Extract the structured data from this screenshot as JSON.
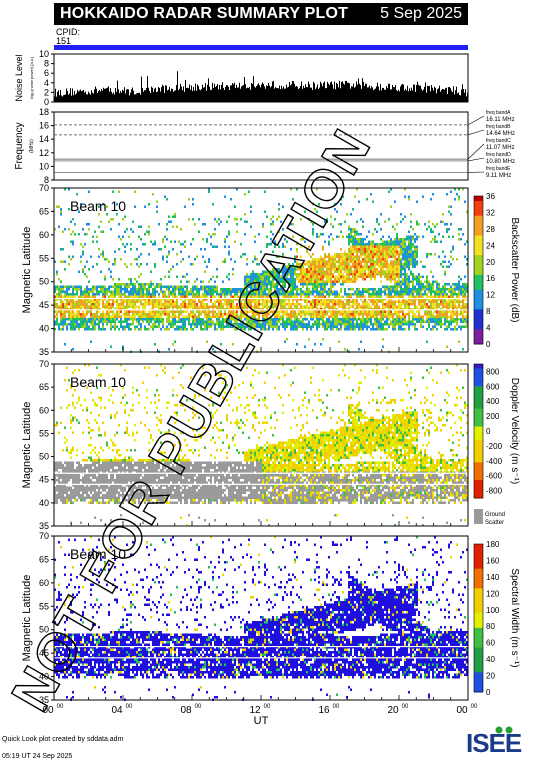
{
  "header": {
    "title": "HOKKAIDO RADAR SUMMARY PLOT",
    "date": "5 Sep 2025"
  },
  "cpid": {
    "label": "CPID:",
    "value": "151"
  },
  "watermark": "NOT FOR PUBLICATION",
  "footer": {
    "line1": "Quick Look plot created by sddata.adm",
    "line2": "05:19 UT 24 Sep 2025"
  },
  "logo_text": "ISEE",
  "colors": {
    "cpid_bar": "#2020ff",
    "ground_scatter": "#9a9a9a",
    "header_bg": "#000000"
  },
  "chart_data": [
    {
      "type": "bar",
      "title": "",
      "ylabel": "Noise Level",
      "ylabel_sub": "log₁₀(noise power) [a.u.]",
      "ylim": [
        0,
        10
      ],
      "yticks": [
        "0",
        "2",
        "4",
        "6",
        "8",
        "10"
      ],
      "x_range_hours": [
        0,
        24
      ],
      "values_profile": [
        1.6,
        1.8,
        2.0,
        2.2,
        2.0,
        1.9,
        2.4,
        2.6,
        2.8,
        2.9,
        3.0,
        3.1,
        3.2,
        3.3,
        3.2,
        3.1,
        3.2,
        3.3,
        3.0,
        2.9,
        2.8,
        2.6,
        2.4,
        2.2,
        1.6
      ]
    },
    {
      "type": "line",
      "ylabel": "Frequency",
      "ylabel_sub": "(MHz)",
      "ylim": [
        8,
        18
      ],
      "yticks": [
        "8",
        "10",
        "12",
        "14",
        "16",
        "18"
      ],
      "bands": [
        {
          "label": "freq bandA",
          "value_label": "16.11 MHz",
          "mhz": 16.11
        },
        {
          "label": "freq bandB",
          "value_label": "14.64 MHz",
          "mhz": 14.64
        },
        {
          "label": "freq bandC",
          "value_label": "11.07 MHz",
          "mhz": 11.07
        },
        {
          "label": "freq bandD",
          "value_label": "10.80 MHz",
          "mhz": 10.8
        },
        {
          "label": "freq bandE",
          "value_label": "9.11 MHz",
          "mhz": 9.11
        }
      ]
    },
    {
      "type": "heatmap",
      "beam_label": "Beam 10",
      "ylabel": "Magnetic Latitude",
      "ylim": [
        35,
        70
      ],
      "yticks": [
        "35",
        "40",
        "45",
        "50",
        "55",
        "60",
        "65",
        "70"
      ],
      "colorbar_label": "Backscatter Power (dB)",
      "colorbar_ticks": [
        "0",
        "4",
        "8",
        "12",
        "16",
        "20",
        "24",
        "28",
        "32",
        "36"
      ],
      "colorbar_range": [
        0,
        36
      ]
    },
    {
      "type": "heatmap",
      "beam_label": "Beam 10",
      "ylabel": "Magnetic Latitude",
      "ylim": [
        35,
        70
      ],
      "yticks": [
        "35",
        "40",
        "45",
        "50",
        "55",
        "60",
        "65",
        "70"
      ],
      "colorbar_label": "Doppler Velocity (m s⁻¹)",
      "colorbar_ticks": [
        "800",
        "600",
        "400",
        "200",
        "0",
        "-200",
        "-400",
        "-600",
        "-800"
      ],
      "colorbar_range": [
        -800,
        800
      ],
      "ground_scatter_label": "Ground Scatter"
    },
    {
      "type": "heatmap",
      "beam_label": "Beam 10",
      "ylabel": "Magnetic Latitude",
      "ylim": [
        35,
        70
      ],
      "yticks": [
        "35",
        "40",
        "45",
        "50",
        "55",
        "60",
        "65",
        "70"
      ],
      "colorbar_label": "Spectral Width (m s⁻¹)",
      "colorbar_ticks": [
        "0",
        "20",
        "40",
        "60",
        "80",
        "100",
        "120",
        "140",
        "160",
        "180"
      ],
      "colorbar_range": [
        0,
        180
      ]
    }
  ],
  "x_axis": {
    "label": "UT",
    "ticks": [
      {
        "hh": "00",
        "mm": "00",
        "hour": 0
      },
      {
        "hh": "04",
        "mm": "00",
        "hour": 4
      },
      {
        "hh": "08",
        "mm": "00",
        "hour": 8
      },
      {
        "hh": "12",
        "mm": "00",
        "hour": 12
      },
      {
        "hh": "16",
        "mm": "00",
        "hour": 16
      },
      {
        "hh": "20",
        "mm": "00",
        "hour": 20
      },
      {
        "hh": "00",
        "mm": "00",
        "hour": 24
      }
    ]
  }
}
